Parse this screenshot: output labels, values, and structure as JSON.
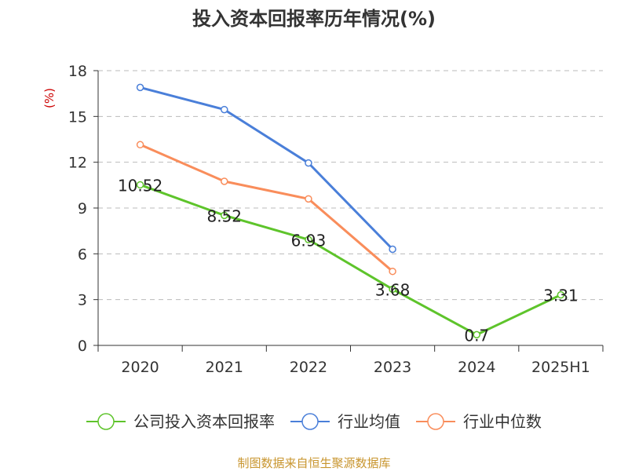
{
  "chart_data": {
    "type": "line",
    "title": "投入资本回报率历年情况(%)",
    "ylabel": "(%)",
    "xlabel": "",
    "categories": [
      "2020",
      "2021",
      "2022",
      "2023",
      "2024",
      "2025H1"
    ],
    "yticks": [
      "0",
      "3",
      "6",
      "9",
      "12",
      "15",
      "18"
    ],
    "ylim": [
      0,
      18
    ],
    "grid": "horizontal dashed",
    "legend_position": "bottom",
    "series": [
      {
        "name": "公司投入资本回报率",
        "color": "#5ec42b",
        "values": [
          10.52,
          8.52,
          6.93,
          3.68,
          0.7,
          3.31
        ],
        "labels": [
          "10.52",
          "8.52",
          "6.93",
          "3.68",
          "0.7",
          "3.31"
        ]
      },
      {
        "name": "行业均值",
        "color": "#4a7fd9",
        "values": [
          16.9,
          15.45,
          11.95,
          6.3,
          null,
          null
        ]
      },
      {
        "name": "行业中位数",
        "color": "#f98d5b",
        "values": [
          13.15,
          10.75,
          9.6,
          4.85,
          null,
          null
        ]
      }
    ],
    "source": "制图数据来自恒生聚源数据库",
    "colors": {
      "title": "#333333",
      "axis": "#333333",
      "ylabel": "#cc0000",
      "grid": "#bbbbbb",
      "source": "#c8952e"
    }
  }
}
